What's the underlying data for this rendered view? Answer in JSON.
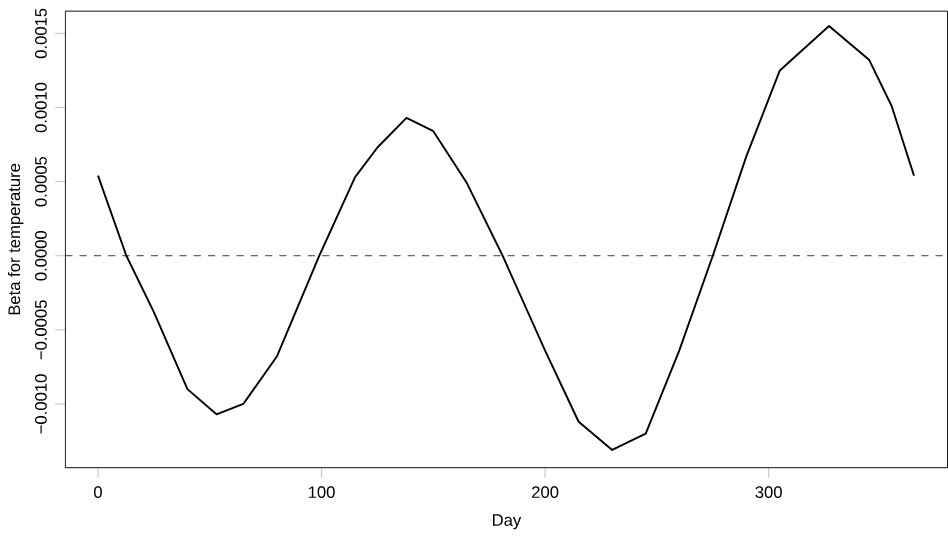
{
  "chart_data": {
    "type": "line",
    "xlabel": "Day",
    "ylabel": "Beta for temperature",
    "x": [
      0,
      12.7,
      25,
      40,
      53,
      65,
      80,
      99,
      115,
      125,
      138,
      150,
      165,
      181,
      200,
      215,
      230,
      245,
      260,
      275,
      290,
      305,
      327,
      345,
      355,
      365
    ],
    "series": [
      {
        "color": "#000000",
        "values": [
          0.00054,
          0,
          -0.00038,
          -0.0009,
          -0.00107,
          -0.001,
          -0.00068,
          0,
          0.00053,
          0.00073,
          0.00093,
          0.00084,
          0.00049,
          0,
          -0.00064,
          -0.00112,
          -0.00131,
          -0.0012,
          -0.00064,
          0,
          0.00067,
          0.00125,
          0.00155,
          0.00132,
          0.00101,
          0.00054
        ]
      }
    ],
    "xlim": [
      -14.6,
      380
    ],
    "ylim": [
      -0.00143,
      0.00165
    ],
    "xticks": [
      0,
      100,
      200,
      300
    ],
    "yticks": [
      {
        "value": -0.001,
        "label": "−0.0010"
      },
      {
        "value": -0.0005,
        "label": "−0.0005"
      },
      {
        "value": 0,
        "label": "0.0000"
      },
      {
        "value": 0.0005,
        "label": "0.0005"
      },
      {
        "value": 0.001,
        "label": "0.0010"
      },
      {
        "value": 0.0015,
        "label": "0.0015"
      }
    ],
    "ref_lines": [
      {
        "axis": "y",
        "value": 0,
        "line_style": "dashed",
        "color": "#333333"
      }
    ],
    "grid": false,
    "marker": "none",
    "line_style": "solid"
  }
}
